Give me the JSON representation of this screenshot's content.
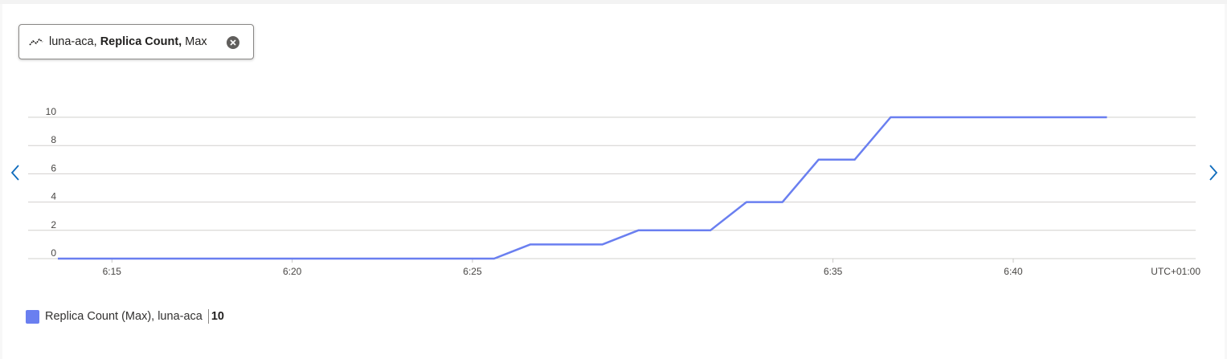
{
  "pill": {
    "resource": "luna-aca,",
    "metric": "Replica Count,",
    "aggregation": "Max",
    "icon": "line-chart-icon",
    "close_icon": "close-icon"
  },
  "navigation": {
    "prev_icon": "chevron-left-icon",
    "next_icon": "chevron-right-icon"
  },
  "chart_data": {
    "type": "line",
    "x_unit": "time (h:mm)",
    "timezone": "UTC+01:00",
    "xlim": [
      "6:13.5",
      "6:43.5"
    ],
    "ylim": [
      0,
      10
    ],
    "y_ticks": [
      "0",
      "2",
      "4",
      "6",
      "8",
      "10"
    ],
    "x_ticks": [
      "6:15",
      "6:20",
      "6:25",
      "6:35",
      "6:40"
    ],
    "grid": true,
    "legend_position": "bottom-left",
    "series": [
      {
        "name": "Replica Count (Max), luna-aca",
        "color": "#6a7ff0",
        "summary_value": "10",
        "points": [
          {
            "x": "6:13.5",
            "y": 0
          },
          {
            "x": "6:25.6",
            "y": 0
          },
          {
            "x": "6:26.6",
            "y": 1
          },
          {
            "x": "6:28.6",
            "y": 1
          },
          {
            "x": "6:29.6",
            "y": 2
          },
          {
            "x": "6:31.6",
            "y": 2
          },
          {
            "x": "6:32.6",
            "y": 4
          },
          {
            "x": "6:33.6",
            "y": 4
          },
          {
            "x": "6:34.6",
            "y": 7
          },
          {
            "x": "6:35.6",
            "y": 7
          },
          {
            "x": "6:36.6",
            "y": 10
          },
          {
            "x": "6:42.6",
            "y": 10
          }
        ]
      }
    ]
  }
}
